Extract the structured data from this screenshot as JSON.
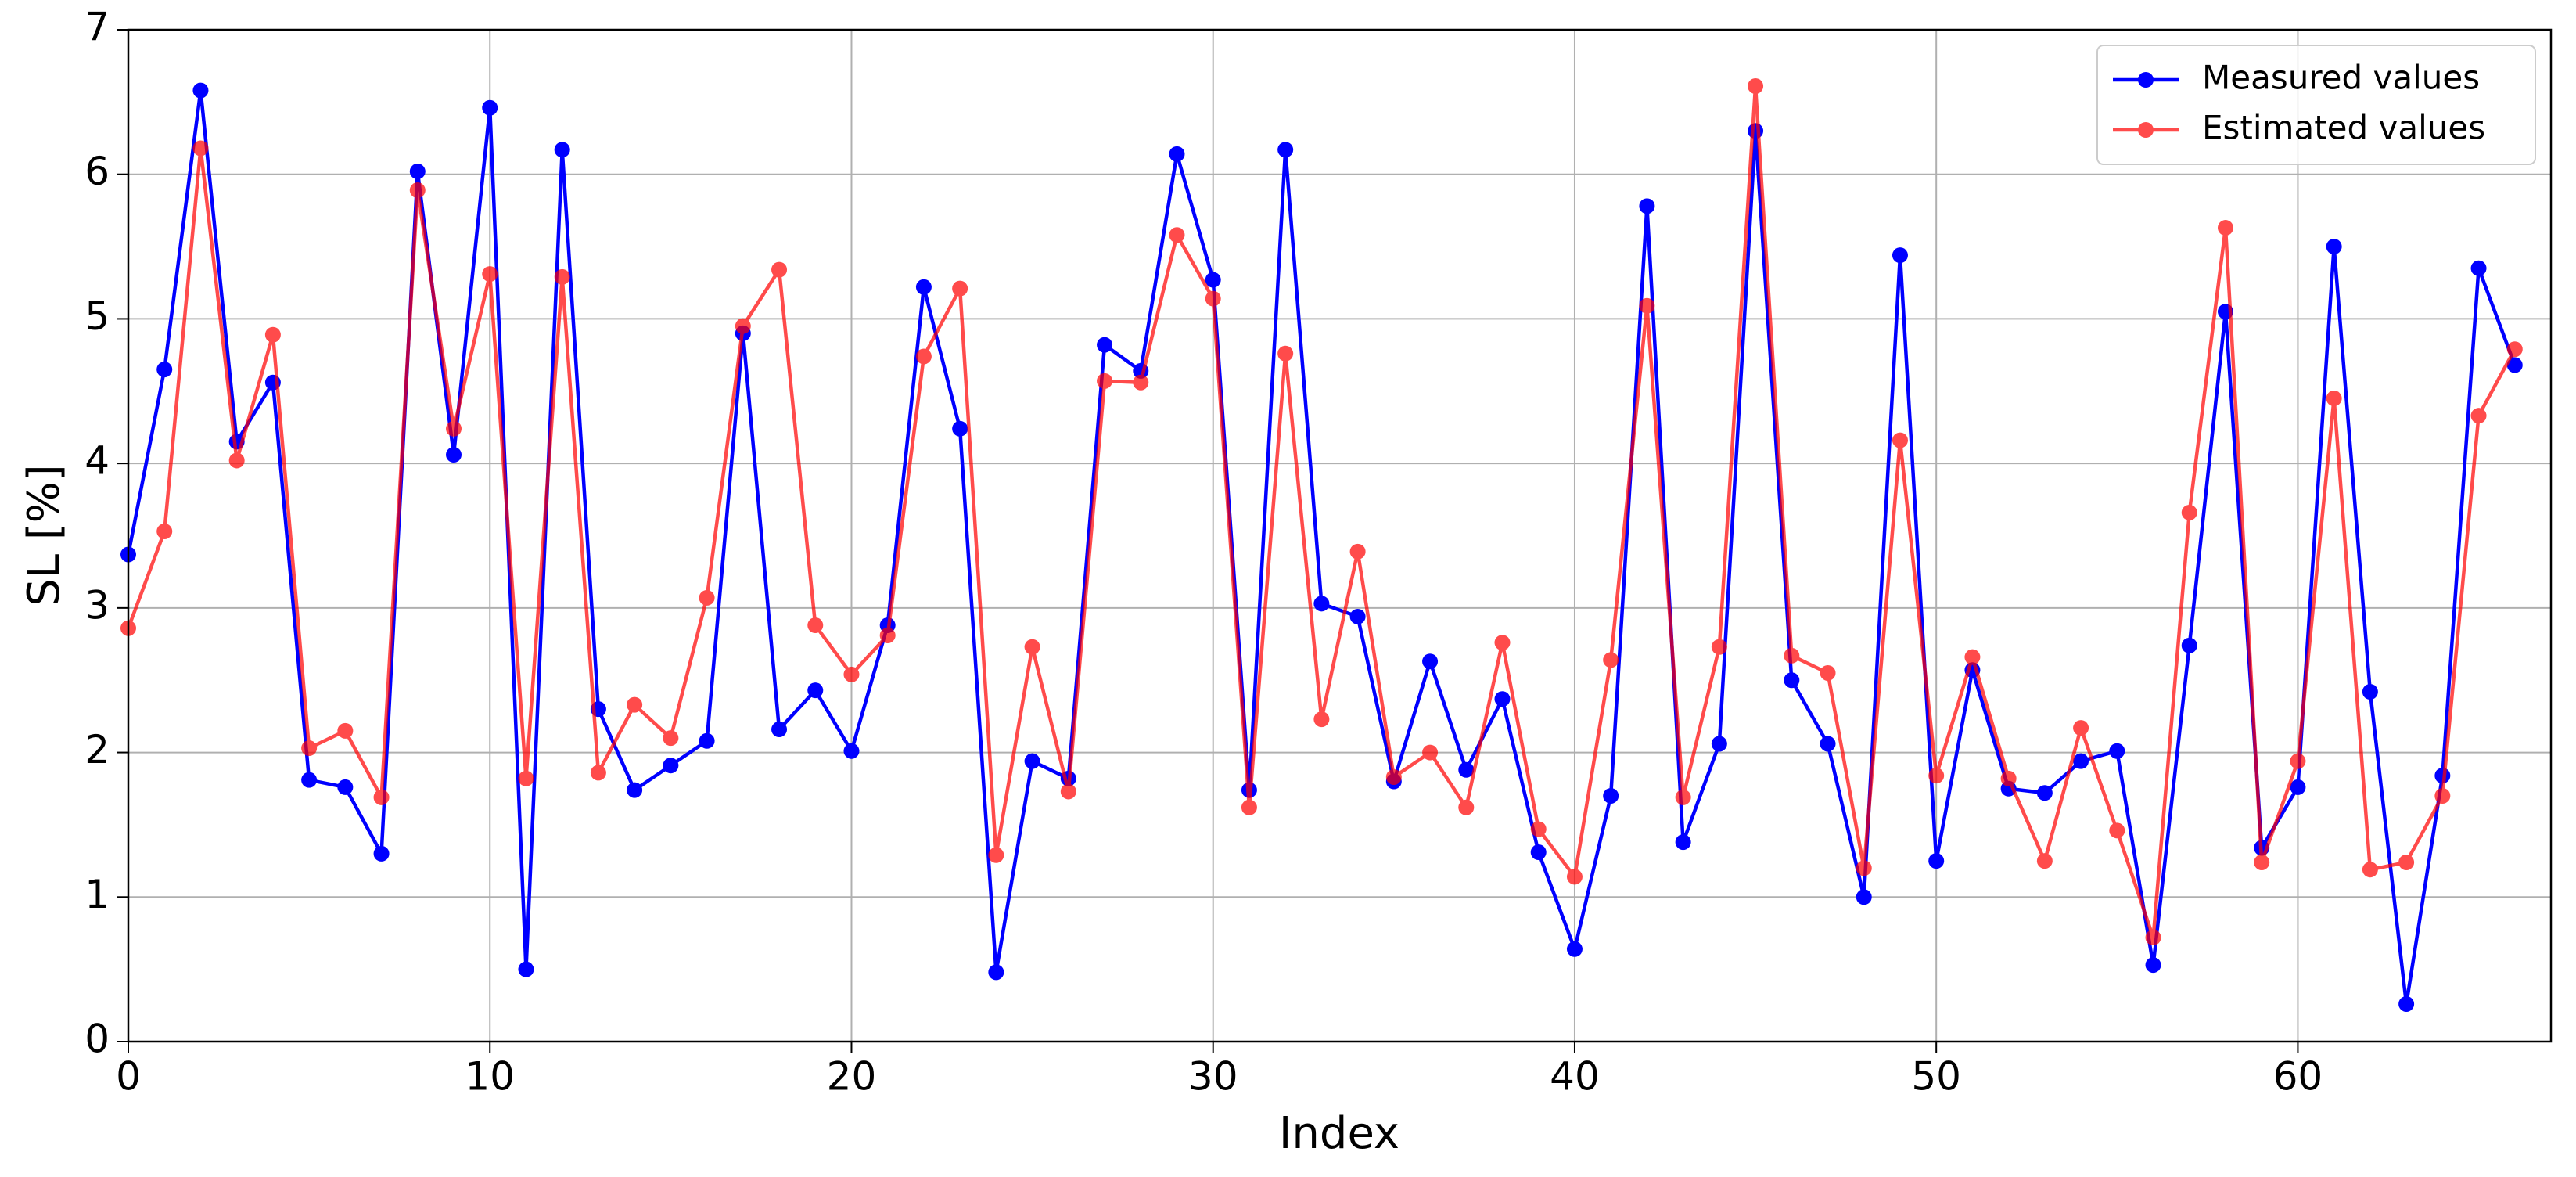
{
  "chart_data": {
    "type": "line",
    "x_label": "Index",
    "y_label": "SL [%]",
    "x": [
      0,
      1,
      2,
      3,
      4,
      5,
      6,
      7,
      8,
      9,
      10,
      11,
      12,
      13,
      14,
      15,
      16,
      17,
      18,
      19,
      20,
      21,
      22,
      23,
      24,
      25,
      26,
      27,
      28,
      29,
      30,
      31,
      32,
      33,
      34,
      35,
      36,
      37,
      38,
      39,
      40,
      41,
      42,
      43,
      44,
      45,
      46,
      47,
      48,
      49,
      50,
      51,
      52,
      53,
      54,
      55,
      56,
      57,
      58,
      59,
      60,
      61,
      62,
      63,
      64,
      65,
      66
    ],
    "series": [
      {
        "name": "Measured values",
        "color": "#0000ff",
        "opacity": 1,
        "values": [
          3.37,
          4.65,
          6.58,
          4.15,
          4.56,
          1.81,
          1.76,
          1.3,
          6.02,
          4.06,
          6.46,
          0.5,
          6.17,
          2.3,
          1.74,
          1.91,
          2.08,
          4.9,
          2.16,
          2.43,
          2.01,
          2.88,
          5.22,
          4.24,
          0.48,
          1.94,
          1.82,
          4.82,
          4.64,
          6.14,
          5.27,
          1.74,
          6.17,
          3.03,
          2.94,
          1.8,
          2.63,
          1.88,
          2.37,
          1.31,
          0.64,
          1.7,
          5.78,
          1.38,
          2.06,
          6.3,
          2.5,
          2.06,
          1.0,
          5.44,
          1.25,
          2.57,
          1.75,
          1.72,
          1.94,
          2.01,
          0.53,
          2.74,
          5.05,
          1.34,
          1.76,
          5.5,
          2.42,
          0.26,
          1.84,
          5.35,
          4.68
        ]
      },
      {
        "name": "Estimated values",
        "color": "#ff0000",
        "opacity": 0.7,
        "values": [
          2.86,
          3.53,
          6.18,
          4.02,
          4.89,
          2.03,
          2.15,
          1.69,
          5.89,
          4.24,
          5.31,
          1.82,
          5.29,
          1.86,
          2.33,
          2.1,
          3.07,
          4.95,
          5.34,
          2.88,
          2.54,
          2.81,
          4.74,
          5.21,
          1.29,
          2.73,
          1.73,
          4.57,
          4.56,
          5.58,
          5.14,
          1.62,
          4.76,
          2.23,
          3.39,
          1.83,
          2.0,
          1.62,
          2.76,
          1.47,
          1.14,
          2.64,
          5.09,
          1.69,
          2.73,
          6.61,
          2.67,
          2.55,
          1.2,
          4.16,
          1.84,
          2.66,
          1.82,
          1.25,
          2.17,
          1.46,
          0.72,
          3.66,
          5.63,
          1.24,
          1.94,
          4.45,
          1.19,
          1.24,
          1.7,
          4.33,
          4.79
        ]
      }
    ],
    "xlim": [
      0,
      67
    ],
    "xticks": [
      0,
      10,
      20,
      30,
      40,
      50,
      60
    ],
    "ylim": [
      0,
      7
    ],
    "yticks": [
      0,
      1,
      2,
      3,
      4,
      5,
      6,
      7
    ],
    "grid": true,
    "legend": "upper right"
  }
}
